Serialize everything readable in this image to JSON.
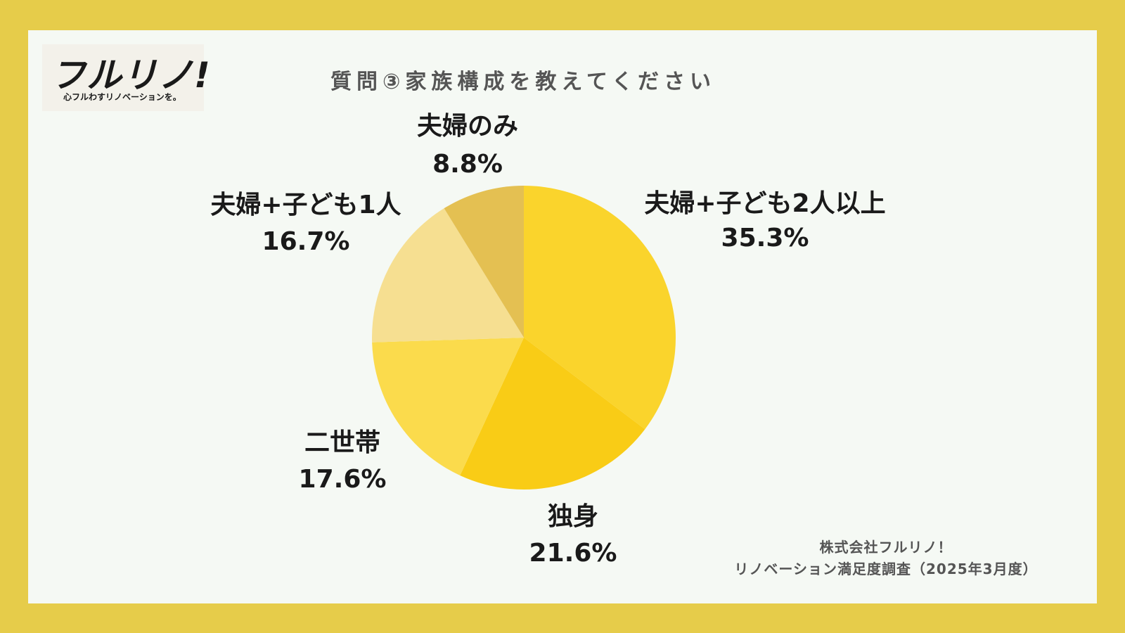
{
  "logo": {
    "mark": "フルリノ!",
    "tagline": "心フルわすリノベーションを。"
  },
  "title": "質問③家族構成を教えてください",
  "chart_data": {
    "type": "pie",
    "title": "質問③家族構成を教えてください",
    "categories": [
      "夫婦+子ども2人以上",
      "独身",
      "二世帯",
      "夫婦+子ども1人",
      "夫婦のみ"
    ],
    "values": [
      35.3,
      21.6,
      17.6,
      16.7,
      8.8
    ],
    "value_labels": [
      "35.3%",
      "21.6%",
      "17.6%",
      "16.7%",
      "8.8%"
    ],
    "colors": [
      "#fad42c",
      "#f9cc16",
      "#fbdb4c",
      "#f6df91",
      "#e4c052"
    ],
    "start": "12 o'clock",
    "direction": "clockwise",
    "legend": "none"
  },
  "source": {
    "line1": "株式会社フルリノ！",
    "line2": "リノベーション満足度調査（2025年3月度）"
  }
}
